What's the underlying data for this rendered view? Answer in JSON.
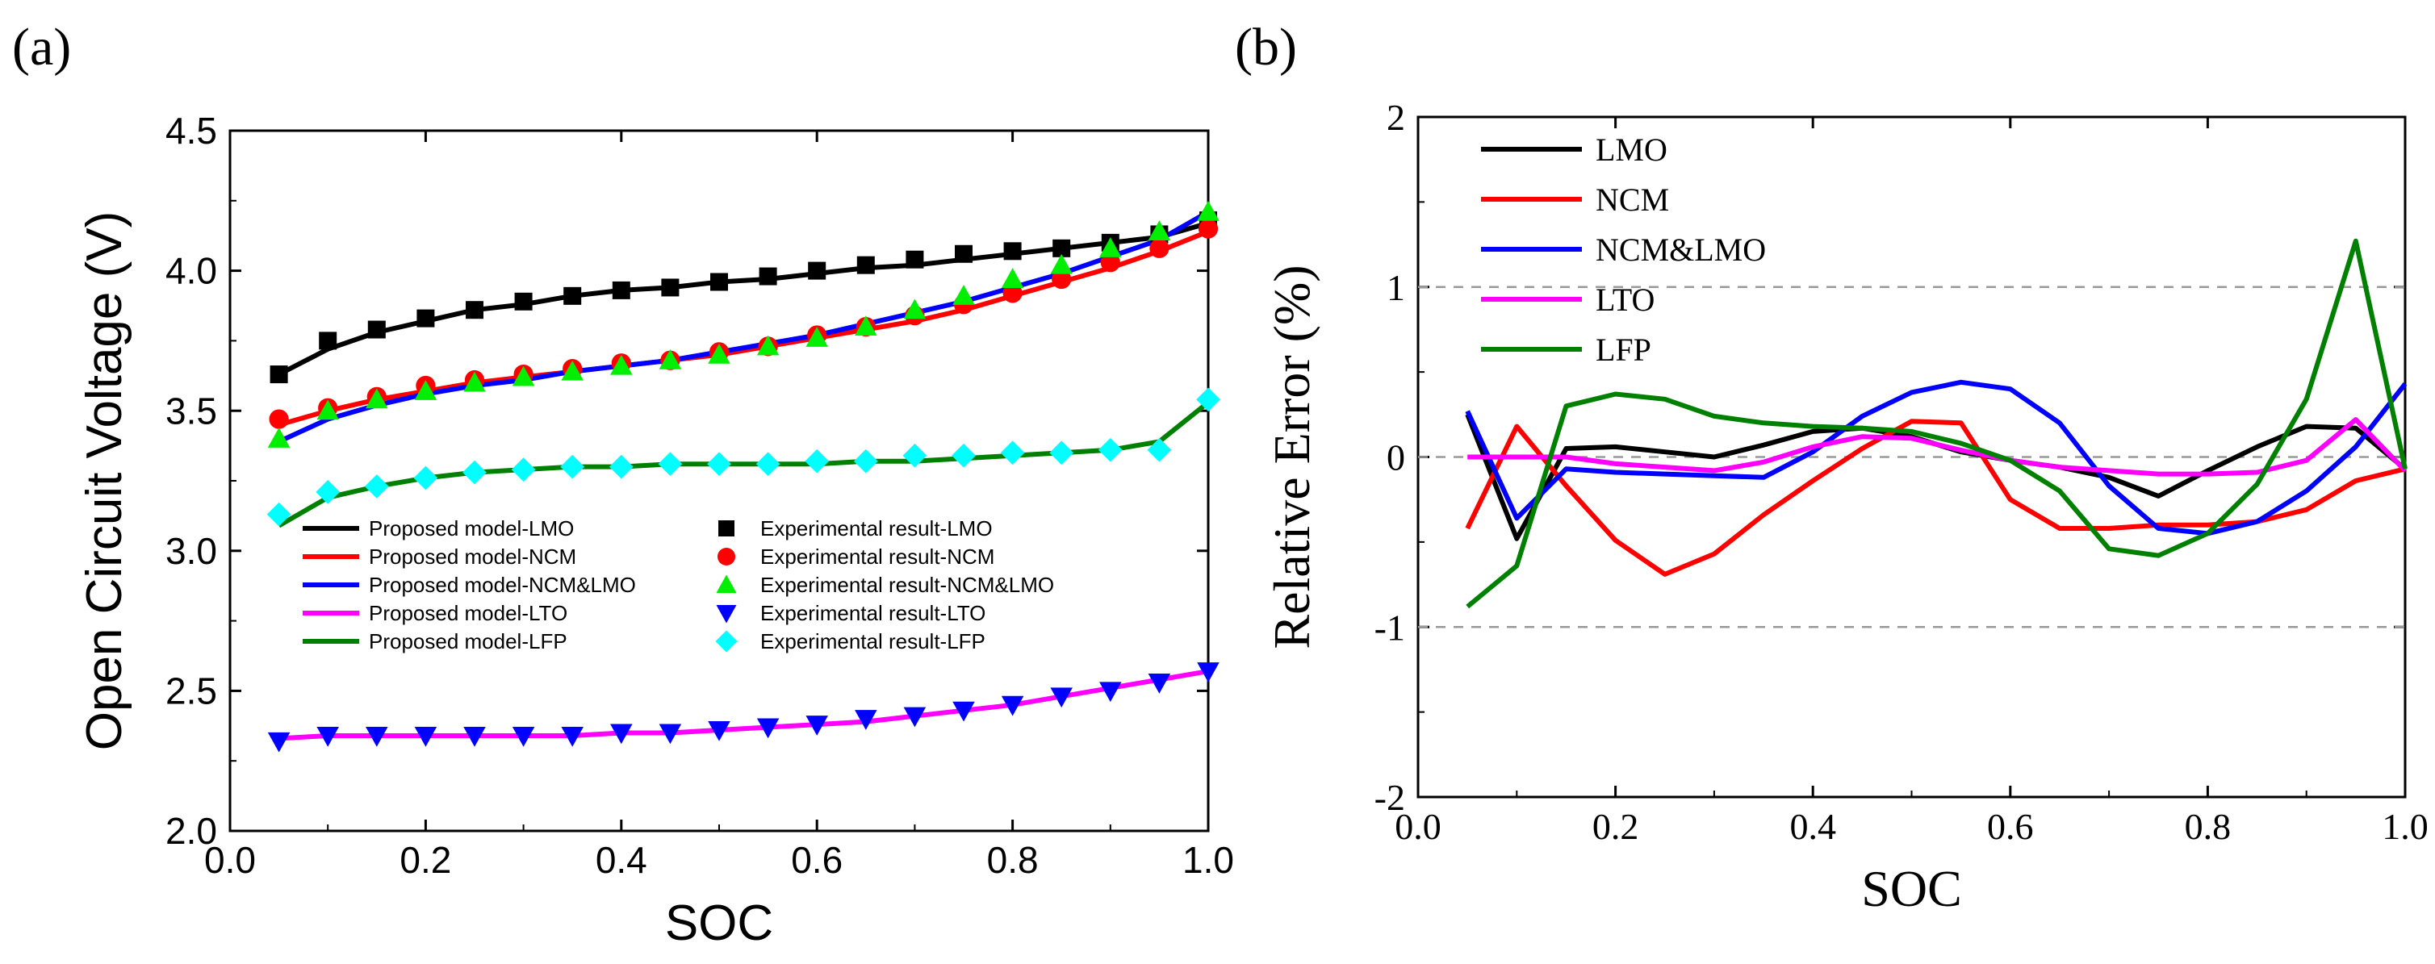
{
  "panels": {
    "a": {
      "label": "(a)"
    },
    "b": {
      "label": "(b)"
    }
  },
  "chart_data": [
    {
      "id": "a",
      "type": "line",
      "title": "",
      "xlabel": "SOC",
      "ylabel": "Open Circuit Voltage (V)",
      "xlim": [
        0.0,
        1.0
      ],
      "ylim": [
        2.0,
        4.5
      ],
      "xticks": [
        0.0,
        0.2,
        0.4,
        0.6,
        0.8,
        1.0
      ],
      "xtick_labels": [
        "0.0",
        "0.2",
        "0.4",
        "0.6",
        "0.8",
        "1.0"
      ],
      "yticks": [
        2.0,
        2.5,
        3.0,
        3.5,
        4.0,
        4.5
      ],
      "ytick_labels": [
        "2.0",
        "2.5",
        "3.0",
        "3.5",
        "4.0",
        "4.5"
      ],
      "grid": false,
      "legend_position": "center",
      "x": [
        0.05,
        0.1,
        0.15,
        0.2,
        0.25,
        0.3,
        0.35,
        0.4,
        0.45,
        0.5,
        0.55,
        0.6,
        0.65,
        0.7,
        0.75,
        0.8,
        0.85,
        0.9,
        0.95,
        1.0
      ],
      "model_series": [
        {
          "name": "Proposed model-LMO",
          "color": "#000000",
          "values": [
            3.63,
            3.72,
            3.78,
            3.82,
            3.86,
            3.88,
            3.91,
            3.93,
            3.94,
            3.96,
            3.97,
            3.99,
            4.01,
            4.02,
            4.04,
            4.06,
            4.08,
            4.1,
            4.12,
            4.17
          ]
        },
        {
          "name": "Proposed model-NCM",
          "color": "#ff0000",
          "values": [
            3.45,
            3.5,
            3.54,
            3.57,
            3.6,
            3.62,
            3.64,
            3.66,
            3.68,
            3.7,
            3.73,
            3.76,
            3.79,
            3.82,
            3.86,
            3.91,
            3.96,
            4.01,
            4.07,
            4.14
          ]
        },
        {
          "name": "Proposed model-NCM&LMO",
          "color": "#0000ff",
          "values": [
            3.39,
            3.47,
            3.52,
            3.56,
            3.59,
            3.61,
            3.64,
            3.66,
            3.68,
            3.71,
            3.74,
            3.77,
            3.81,
            3.85,
            3.89,
            3.94,
            3.99,
            4.05,
            4.11,
            4.21
          ]
        },
        {
          "name": "Proposed model-LTO",
          "color": "#ff00ff",
          "values": [
            2.33,
            2.34,
            2.34,
            2.34,
            2.34,
            2.34,
            2.34,
            2.35,
            2.35,
            2.36,
            2.37,
            2.38,
            2.39,
            2.41,
            2.43,
            2.45,
            2.48,
            2.51,
            2.54,
            2.57
          ]
        },
        {
          "name": "Proposed model-LFP",
          "color": "#008000",
          "values": [
            3.09,
            3.19,
            3.23,
            3.26,
            3.28,
            3.29,
            3.3,
            3.3,
            3.31,
            3.31,
            3.31,
            3.31,
            3.32,
            3.32,
            3.33,
            3.34,
            3.35,
            3.36,
            3.39,
            3.53
          ]
        }
      ],
      "experimental_series": [
        {
          "name": "Experimental result-LMO",
          "color": "#000000",
          "marker": "square",
          "values": [
            3.63,
            3.75,
            3.79,
            3.83,
            3.86,
            3.89,
            3.91,
            3.93,
            3.94,
            3.96,
            3.98,
            4.0,
            4.02,
            4.04,
            4.06,
            4.07,
            4.08,
            4.1,
            4.13,
            4.18
          ]
        },
        {
          "name": "Experimental result-NCM",
          "color": "#ff0000",
          "marker": "circle",
          "values": [
            3.47,
            3.51,
            3.55,
            3.59,
            3.61,
            3.63,
            3.65,
            3.67,
            3.68,
            3.71,
            3.73,
            3.77,
            3.8,
            3.84,
            3.88,
            3.92,
            3.97,
            4.03,
            4.08,
            4.15
          ]
        },
        {
          "name": "Experimental result-NCM&LMO",
          "color": "#00ee00",
          "marker": "triangle-up",
          "values": [
            3.4,
            3.5,
            3.54,
            3.57,
            3.6,
            3.62,
            3.64,
            3.66,
            3.68,
            3.7,
            3.73,
            3.76,
            3.8,
            3.86,
            3.91,
            3.97,
            4.02,
            4.08,
            4.14,
            4.21
          ]
        },
        {
          "name": "Experimental result-LTO",
          "color": "#0000ff",
          "marker": "triangle-down",
          "values": [
            2.32,
            2.34,
            2.34,
            2.34,
            2.34,
            2.34,
            2.34,
            2.35,
            2.35,
            2.36,
            2.37,
            2.38,
            2.4,
            2.41,
            2.43,
            2.45,
            2.48,
            2.5,
            2.53,
            2.57
          ]
        },
        {
          "name": "Experimental result-LFP",
          "color": "#00ffff",
          "marker": "diamond",
          "values": [
            3.13,
            3.21,
            3.23,
            3.26,
            3.28,
            3.29,
            3.3,
            3.3,
            3.31,
            3.31,
            3.31,
            3.32,
            3.32,
            3.34,
            3.34,
            3.35,
            3.35,
            3.36,
            3.36,
            3.54
          ]
        }
      ]
    },
    {
      "id": "b",
      "type": "line",
      "title": "",
      "xlabel": "SOC",
      "ylabel": "Relative Error (%)",
      "xlim": [
        0.0,
        1.0
      ],
      "ylim": [
        -2,
        2
      ],
      "xticks": [
        0.0,
        0.2,
        0.4,
        0.6,
        0.8,
        1.0
      ],
      "xtick_labels": [
        "0.0",
        "0.2",
        "0.4",
        "0.6",
        "0.8",
        "1.0"
      ],
      "yticks": [
        -2,
        -1,
        0,
        1,
        2
      ],
      "ytick_labels": [
        "-2",
        "-1",
        "0",
        "1",
        "2"
      ],
      "grid": "dashed reference lines at y = -1, 0, 1",
      "reference_lines": [
        -1,
        0,
        1
      ],
      "legend_position": "top-left",
      "x": [
        0.05,
        0.1,
        0.15,
        0.2,
        0.25,
        0.3,
        0.35,
        0.4,
        0.45,
        0.5,
        0.55,
        0.6,
        0.65,
        0.7,
        0.75,
        0.8,
        0.85,
        0.9,
        0.95,
        1.0
      ],
      "series": [
        {
          "name": "LMO",
          "color": "#000000",
          "values": [
            0.25,
            -0.48,
            0.05,
            0.06,
            0.03,
            0.0,
            0.07,
            0.15,
            0.17,
            0.12,
            0.03,
            -0.02,
            -0.06,
            -0.12,
            -0.23,
            -0.08,
            0.06,
            0.18,
            0.17,
            -0.07
          ]
        },
        {
          "name": "NCM",
          "color": "#ff0000",
          "values": [
            -0.42,
            0.18,
            -0.17,
            -0.49,
            -0.69,
            -0.57,
            -0.34,
            -0.14,
            0.05,
            0.21,
            0.2,
            -0.25,
            -0.42,
            -0.42,
            -0.4,
            -0.4,
            -0.38,
            -0.31,
            -0.14,
            -0.07
          ]
        },
        {
          "name": "NCM&LMO",
          "color": "#0000ff",
          "values": [
            0.27,
            -0.36,
            -0.07,
            -0.09,
            -0.1,
            -0.11,
            -0.12,
            0.03,
            0.24,
            0.38,
            0.44,
            0.4,
            0.2,
            -0.17,
            -0.42,
            -0.45,
            -0.38,
            -0.2,
            0.06,
            0.43
          ]
        },
        {
          "name": "LTO",
          "color": "#ff00ff",
          "values": [
            0.0,
            0.0,
            0.0,
            -0.04,
            -0.06,
            -0.08,
            -0.03,
            0.06,
            0.12,
            0.11,
            0.04,
            -0.02,
            -0.06,
            -0.08,
            -0.1,
            -0.1,
            -0.09,
            -0.02,
            0.22,
            -0.08
          ]
        },
        {
          "name": "LFP",
          "color": "#008000",
          "values": [
            -0.88,
            -0.64,
            0.3,
            0.37,
            0.34,
            0.24,
            0.2,
            0.18,
            0.17,
            0.15,
            0.08,
            -0.02,
            -0.2,
            -0.54,
            -0.58,
            -0.45,
            -0.16,
            0.34,
            1.27,
            -0.07
          ]
        }
      ]
    }
  ]
}
